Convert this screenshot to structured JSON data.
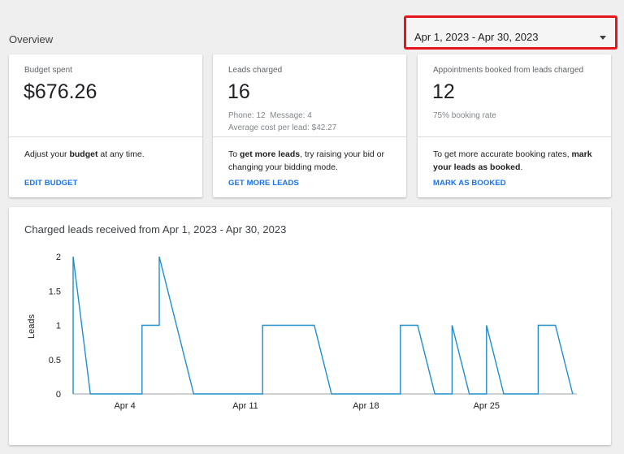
{
  "overview": {
    "title": "Overview"
  },
  "date_range": {
    "label": "Apr 1, 2023 - Apr 30, 2023",
    "icon": "caret-down-icon"
  },
  "cards": {
    "budget": {
      "label": "Budget spent",
      "value": "$676.26",
      "tip_pre": "Adjust your ",
      "tip_bold": "budget",
      "tip_post": " at any time.",
      "link": "EDIT BUDGET"
    },
    "leads": {
      "label": "Leads charged",
      "value": "16",
      "meta_line1": "Phone: 12  Message: 4",
      "meta_line2": "Average cost per lead: $42.27",
      "tip_pre": "To ",
      "tip_bold": "get more leads",
      "tip_post": ", try raising your bid or changing your bidding mode.",
      "link": "GET MORE LEADS"
    },
    "appointments": {
      "label": "Appointments booked from leads charged",
      "value": "12",
      "meta_line1": "75% booking rate",
      "tip_pre": "To get more accurate booking rates, ",
      "tip_bold": "mark your leads as booked",
      "tip_post": ".",
      "link": "MARK AS BOOKED"
    }
  },
  "colors": {
    "accent": "#1a73e8",
    "line": "#1f8ecd",
    "highlight": "#e8141c"
  },
  "chart_data": {
    "type": "line",
    "title": "Charged leads received from Apr 1, 2023 - Apr 30, 2023",
    "ylabel": "Leads",
    "xlabel": "",
    "ylim": [
      0,
      2
    ],
    "y_ticks": [
      "0",
      "0.5",
      "1",
      "1.5",
      "2"
    ],
    "x_ticks": [
      {
        "day": 4,
        "label": "Apr 4"
      },
      {
        "day": 11,
        "label": "Apr 11"
      },
      {
        "day": 18,
        "label": "Apr 18"
      },
      {
        "day": 25,
        "label": "Apr 25"
      }
    ],
    "x": [
      1,
      2,
      3,
      4,
      5,
      6,
      7,
      8,
      9,
      10,
      11,
      12,
      13,
      14,
      15,
      16,
      17,
      18,
      19,
      20,
      21,
      22,
      23,
      24,
      25,
      26,
      27,
      28,
      29,
      30
    ],
    "series": [
      {
        "values": [
          2,
          0,
          0,
          0,
          1,
          2,
          1,
          0,
          0,
          0,
          0,
          1,
          1,
          1,
          1,
          0,
          0,
          0,
          0,
          1,
          1,
          0,
          1,
          0,
          1,
          0,
          0,
          1,
          1,
          0
        ]
      }
    ]
  }
}
